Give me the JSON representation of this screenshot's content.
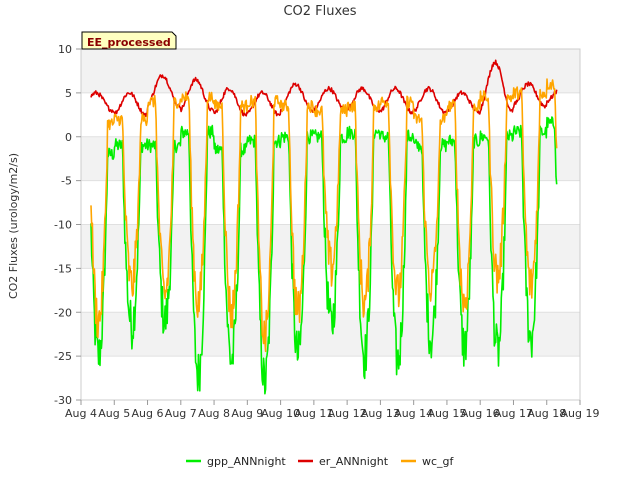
{
  "chart_data": {
    "type": "line",
    "title": "CO2 Fluxes",
    "xlabel": "",
    "ylabel": "CO2 Fluxes (urology/m2/s)",
    "badge": "EE_processed",
    "ylim": [
      -30,
      10
    ],
    "yticks": [
      10,
      5,
      0,
      -5,
      -10,
      -15,
      -20,
      -25,
      -30
    ],
    "xlim": [
      4,
      19
    ],
    "xticks": [
      4,
      5,
      6,
      7,
      8,
      9,
      10,
      11,
      12,
      13,
      14,
      15,
      16,
      17,
      18,
      19
    ],
    "xtick_labels": [
      "Aug 4",
      "Aug 5",
      "Aug 6",
      "Aug 7",
      "Aug 8",
      "Aug 9",
      "Aug 10",
      "Aug 11",
      "Aug 12",
      "Aug 13",
      "Aug 14",
      "Aug 15",
      "Aug 16",
      "Aug 17",
      "Aug 18",
      "Aug 19"
    ],
    "grid": "horizontal bands",
    "legend_position": "bottom",
    "x_units": "day of August (fractional)",
    "day_range": [
      4.3,
      18.3
    ],
    "series": [
      {
        "name": "gpp_ANNnight",
        "color": "#00ee00",
        "daily": [
          {
            "day": 4,
            "night": -2.0,
            "min": -25.0
          },
          {
            "day": 5,
            "night": -1.0,
            "min": -21.5
          },
          {
            "day": 6,
            "night": -1.0,
            "min": -21.0
          },
          {
            "day": 7,
            "night": 0.5,
            "min": -27.0
          },
          {
            "day": 8,
            "night": -1.5,
            "min": -25.5
          },
          {
            "day": 9,
            "night": -0.5,
            "min": -28.0
          },
          {
            "day": 10,
            "night": 0.0,
            "min": -25.0
          },
          {
            "day": 11,
            "night": 0.0,
            "min": -21.5
          },
          {
            "day": 12,
            "night": 0.5,
            "min": -25.0
          },
          {
            "day": 13,
            "night": 0.0,
            "min": -25.5
          },
          {
            "day": 14,
            "night": -1.0,
            "min": -23.0
          },
          {
            "day": 15,
            "night": -0.5,
            "min": -24.0
          },
          {
            "day": 16,
            "night": 0.0,
            "min": -24.5
          },
          {
            "day": 17,
            "night": 0.5,
            "min": -23.0
          },
          {
            "day": 18,
            "night": 1.5,
            "min": -20.0
          }
        ]
      },
      {
        "name": "er_ANNnight",
        "color": "#dd0000",
        "daily": [
          {
            "day": 4,
            "night": 3.0,
            "peak": 5.0
          },
          {
            "day": 5,
            "night": 2.5,
            "peak": 5.0
          },
          {
            "day": 6,
            "night": 3.5,
            "peak": 7.0
          },
          {
            "day": 7,
            "night": 3.0,
            "peak": 6.5
          },
          {
            "day": 8,
            "night": 2.5,
            "peak": 5.5
          },
          {
            "day": 9,
            "night": 2.5,
            "peak": 5.0
          },
          {
            "day": 10,
            "night": 3.0,
            "peak": 6.0
          },
          {
            "day": 11,
            "night": 3.0,
            "peak": 5.5
          },
          {
            "day": 12,
            "night": 3.0,
            "peak": 5.5
          },
          {
            "day": 13,
            "night": 2.8,
            "peak": 5.5
          },
          {
            "day": 14,
            "night": 2.8,
            "peak": 5.5
          },
          {
            "day": 15,
            "night": 2.8,
            "peak": 5.0
          },
          {
            "day": 16,
            "night": 3.0,
            "peak": 8.5
          },
          {
            "day": 17,
            "night": 3.5,
            "peak": 6.0
          },
          {
            "day": 18,
            "night": 4.0,
            "peak": 5.5
          }
        ]
      },
      {
        "name": "wc_gf",
        "color": "#ffa500",
        "daily": [
          {
            "day": 4,
            "night": 1.5,
            "min": -21.0
          },
          {
            "day": 5,
            "night": 2.0,
            "min": -17.0
          },
          {
            "day": 6,
            "night": 4.0,
            "min": -18.0
          },
          {
            "day": 7,
            "night": 4.5,
            "min": -19.0
          },
          {
            "day": 8,
            "night": 3.5,
            "min": -20.0
          },
          {
            "day": 9,
            "night": 4.0,
            "min": -23.0
          },
          {
            "day": 10,
            "night": 3.5,
            "min": -20.0
          },
          {
            "day": 11,
            "night": 3.0,
            "min": -15.0
          },
          {
            "day": 12,
            "night": 3.5,
            "min": -19.0
          },
          {
            "day": 13,
            "night": 4.0,
            "min": -18.0
          },
          {
            "day": 14,
            "night": 2.0,
            "min": -17.0
          },
          {
            "day": 15,
            "night": 3.5,
            "min": -19.0
          },
          {
            "day": 16,
            "night": 4.5,
            "min": -16.0
          },
          {
            "day": 17,
            "night": 5.0,
            "min": -17.0
          },
          {
            "day": 18,
            "night": 6.0,
            "min": -17.0
          }
        ]
      }
    ]
  }
}
